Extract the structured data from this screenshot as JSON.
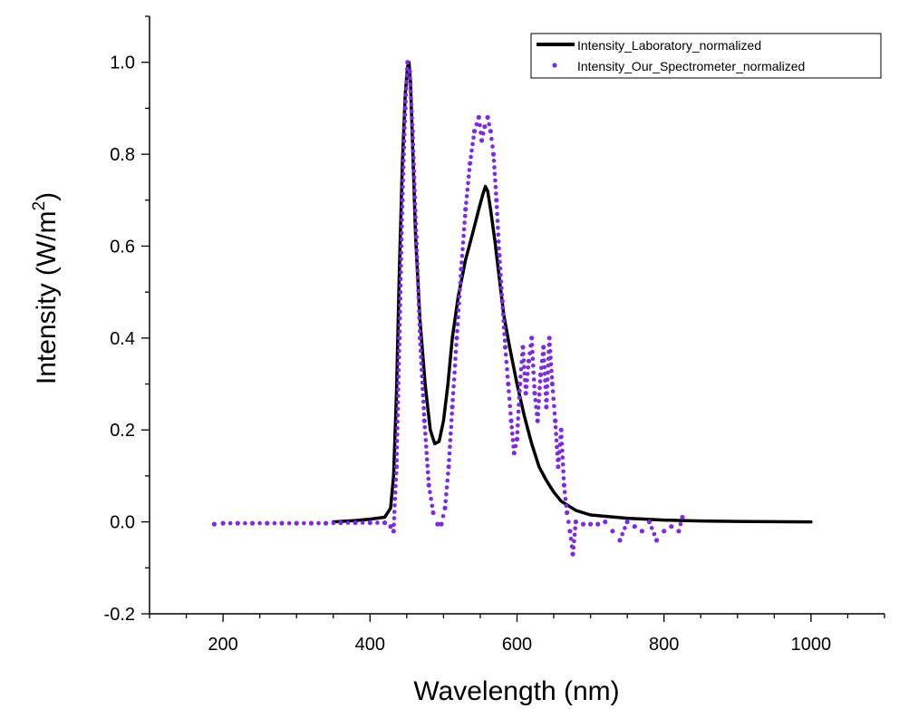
{
  "chart_data": {
    "type": "line",
    "title": "",
    "xlabel": "Wavelength (nm)",
    "ylabel_base": "Intensity (W/m",
    "ylabel_sup": "2",
    "ylabel_close": ")",
    "xlim": [
      100,
      1100
    ],
    "ylim": [
      -0.2,
      1.1
    ],
    "xticks": [
      200,
      400,
      600,
      800,
      1000
    ],
    "xtick_labels": [
      "200",
      "400",
      "600",
      "800",
      "1000"
    ],
    "yticks": [
      -0.2,
      0.0,
      0.2,
      0.4,
      0.6,
      0.8,
      1.0
    ],
    "ytick_labels": [
      "-0.2",
      "0.0",
      "0.2",
      "0.4",
      "0.6",
      "0.8",
      "1.0"
    ],
    "x_minor_step": 50,
    "y_minor_step": 0.1,
    "grid": false,
    "legend_position": "top-right",
    "series": [
      {
        "name": "Intensity_Laboratory_normalized",
        "style": "solid",
        "color": "#000000",
        "x": [
          350,
          380,
          400,
          420,
          428,
          432,
          436,
          440,
          444,
          448,
          451,
          453,
          455,
          458,
          462,
          468,
          475,
          482,
          488,
          494,
          500,
          506,
          512,
          520,
          530,
          540,
          548,
          553,
          557,
          560,
          564,
          570,
          576,
          582,
          590,
          600,
          610,
          620,
          630,
          640,
          650,
          660,
          680,
          700,
          750,
          800,
          850,
          900,
          1000
        ],
        "y": [
          0.0,
          0.003,
          0.006,
          0.01,
          0.03,
          0.1,
          0.28,
          0.55,
          0.78,
          0.93,
          0.99,
          1.0,
          0.96,
          0.82,
          0.62,
          0.44,
          0.3,
          0.2,
          0.17,
          0.175,
          0.22,
          0.3,
          0.4,
          0.49,
          0.57,
          0.63,
          0.68,
          0.71,
          0.73,
          0.72,
          0.68,
          0.61,
          0.53,
          0.45,
          0.38,
          0.3,
          0.23,
          0.17,
          0.12,
          0.09,
          0.065,
          0.045,
          0.025,
          0.015,
          0.008,
          0.004,
          0.002,
          0.001,
          0.0
        ]
      },
      {
        "name": "Intensity_Our_Spectrometer_normalized",
        "style": "dotted",
        "color": "#7b2be2",
        "x": [
          188,
          200,
          220,
          240,
          260,
          280,
          300,
          320,
          340,
          360,
          380,
          400,
          420,
          428,
          432,
          436,
          440,
          444,
          448,
          451,
          454,
          458,
          463,
          468,
          474,
          480,
          486,
          492,
          497,
          502,
          507,
          512,
          518,
          524,
          530,
          536,
          542,
          548,
          552,
          556,
          560,
          564,
          568,
          572,
          576,
          580,
          584,
          588,
          592,
          596,
          600,
          604,
          608,
          612,
          616,
          620,
          624,
          628,
          632,
          636,
          640,
          644,
          648,
          652,
          656,
          660,
          664,
          668,
          672,
          676,
          680,
          690,
          700,
          710,
          720,
          730,
          740,
          750,
          760,
          770,
          780,
          790,
          800,
          810,
          820,
          825
        ],
        "y": [
          -0.005,
          -0.003,
          -0.003,
          -0.003,
          -0.003,
          -0.003,
          -0.003,
          -0.003,
          -0.003,
          -0.002,
          -0.002,
          -0.002,
          -0.002,
          -0.01,
          -0.02,
          0.12,
          0.4,
          0.7,
          0.9,
          1.0,
          0.98,
          0.85,
          0.62,
          0.4,
          0.22,
          0.08,
          0.02,
          -0.005,
          -0.005,
          0.03,
          0.12,
          0.25,
          0.4,
          0.55,
          0.68,
          0.78,
          0.85,
          0.88,
          0.83,
          0.86,
          0.88,
          0.85,
          0.8,
          0.7,
          0.58,
          0.48,
          0.38,
          0.3,
          0.22,
          0.15,
          0.18,
          0.3,
          0.38,
          0.28,
          0.35,
          0.4,
          0.28,
          0.22,
          0.32,
          0.38,
          0.25,
          0.4,
          0.3,
          0.22,
          0.12,
          0.2,
          0.08,
          0.02,
          -0.02,
          -0.07,
          0.0,
          -0.005,
          -0.005,
          -0.005,
          0.0,
          -0.02,
          -0.04,
          0.0,
          -0.01,
          -0.02,
          0.0,
          -0.04,
          -0.02,
          -0.01,
          -0.02,
          0.01
        ]
      }
    ]
  }
}
